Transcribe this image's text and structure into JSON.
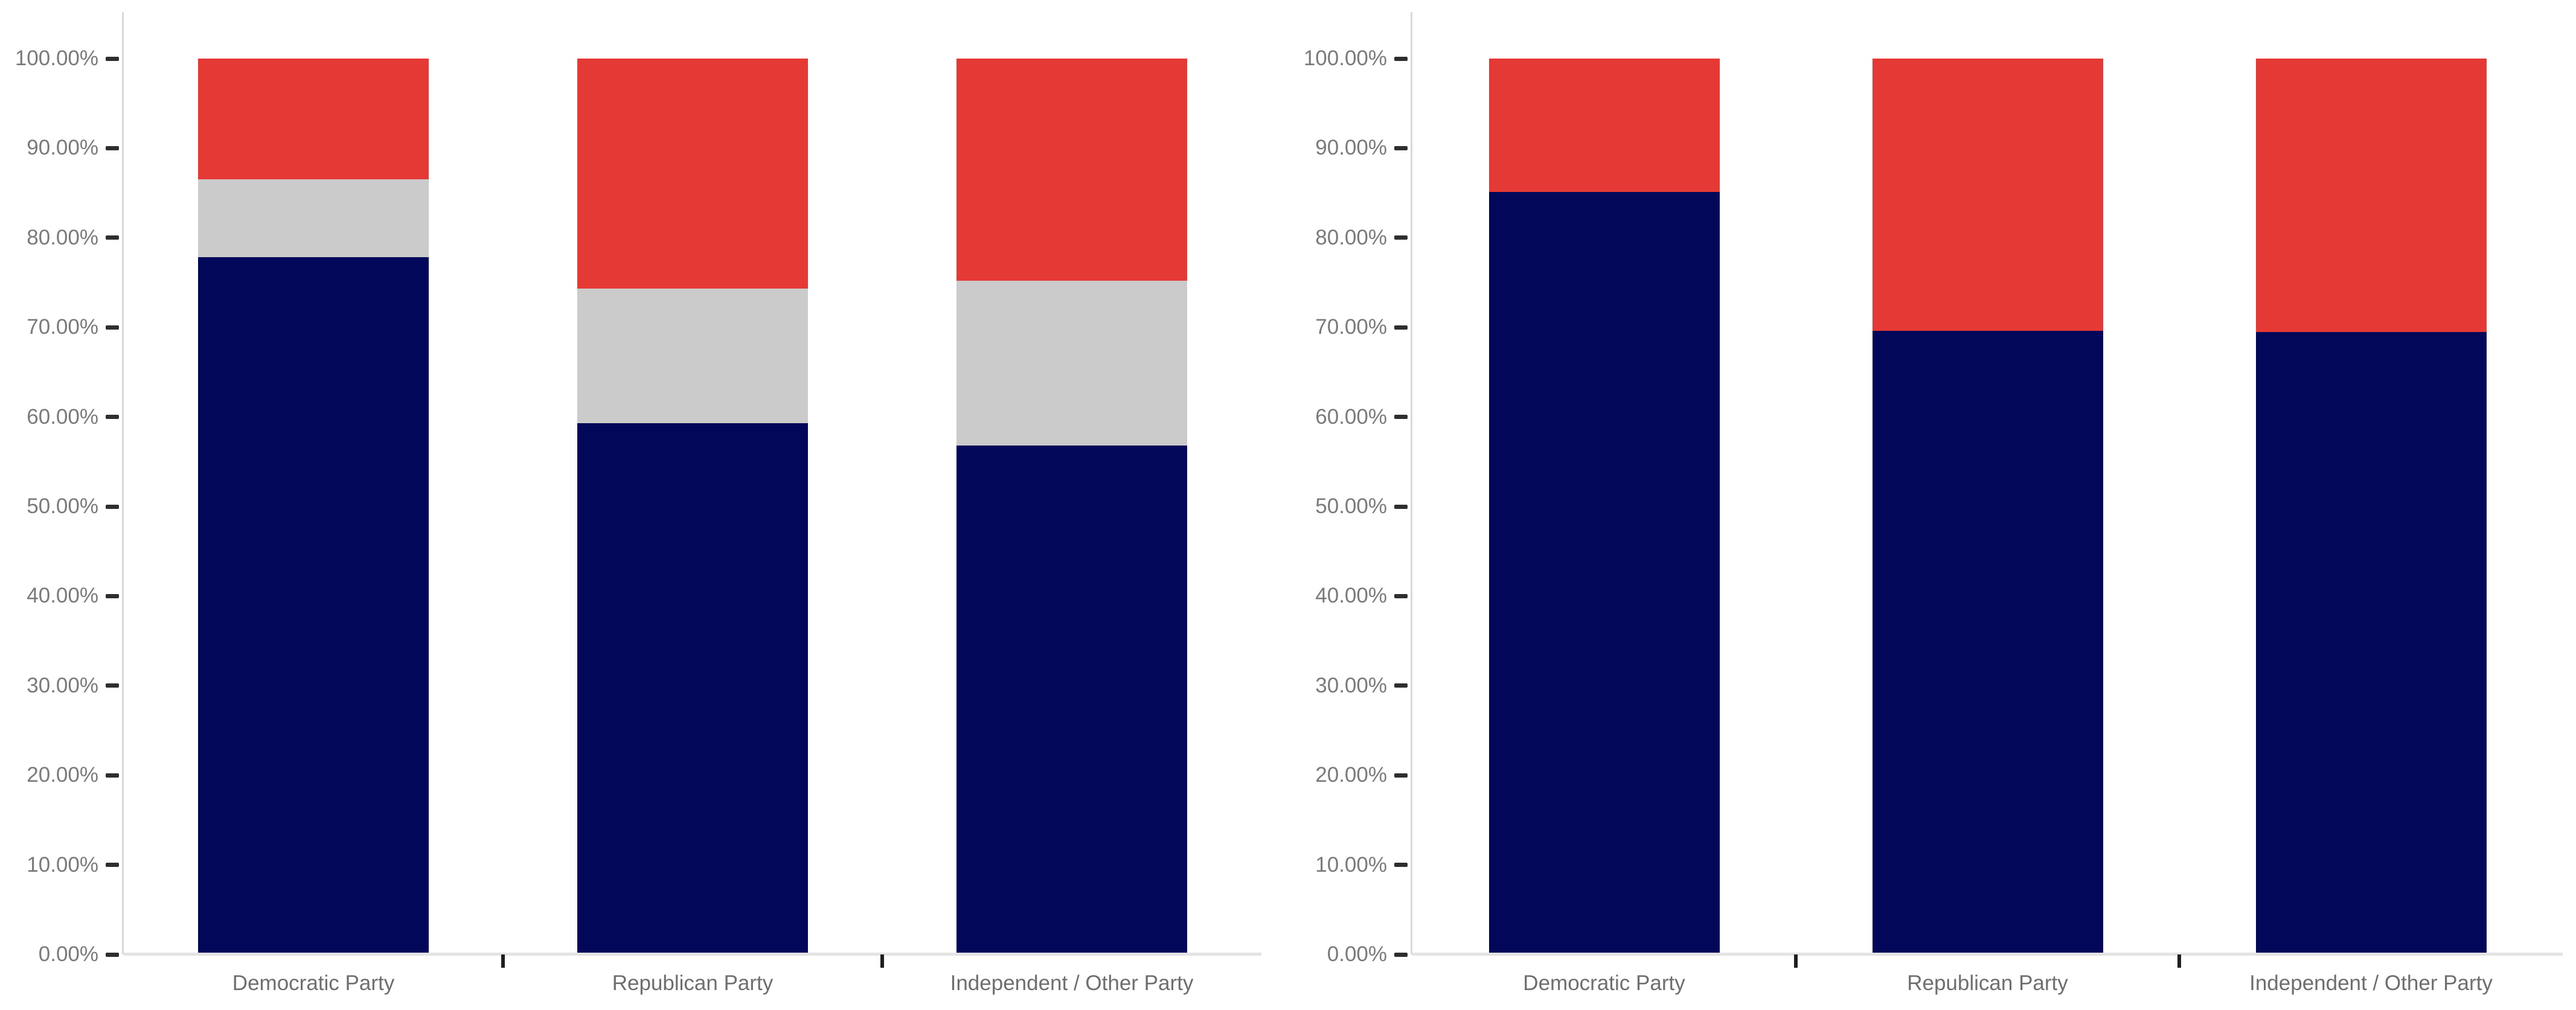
{
  "page": {
    "background_color": "#ffffff"
  },
  "style": {
    "axis_line_color": "#d9d9d9",
    "baseline_color": "#e3e3e3",
    "tick_color": "#2e2e2e",
    "category_tick_color": "#1f1f1f",
    "y_label_color": "#7a7a7a",
    "x_label_color": "#6e6e6e",
    "navy": "#02075a",
    "silver": "#cbcbcb",
    "red": "#e53935"
  },
  "chart_data": [
    {
      "type": "bar",
      "subtype": "stacked-100-percent-column",
      "title": "",
      "xlabel": "",
      "ylabel": "",
      "ylim": [
        0,
        100
      ],
      "grid": false,
      "legend": "none",
      "yticks": [
        "0.00%",
        "10.00%",
        "20.00%",
        "30.00%",
        "40.00%",
        "50.00%",
        "60.00%",
        "70.00%",
        "80.00%",
        "90.00%",
        "100.00%"
      ],
      "categories": [
        "Democratic Party",
        "Republican Party",
        "Independent / Other Party"
      ],
      "series": [
        {
          "name": "navy-segment",
          "color": "#02075a",
          "values": [
            77.8,
            59.3,
            56.8
          ]
        },
        {
          "name": "silver-segment",
          "color": "#cbcbcb",
          "values": [
            8.7,
            15.0,
            18.4
          ]
        },
        {
          "name": "red-segment",
          "color": "#e53935",
          "values": [
            13.5,
            25.7,
            24.8
          ]
        }
      ]
    },
    {
      "type": "bar",
      "subtype": "stacked-100-percent-column",
      "title": "",
      "xlabel": "",
      "ylabel": "",
      "ylim": [
        0,
        100
      ],
      "grid": false,
      "legend": "none",
      "yticks": [
        "0.00%",
        "10.00%",
        "20.00%",
        "30.00%",
        "40.00%",
        "50.00%",
        "60.00%",
        "70.00%",
        "80.00%",
        "90.00%",
        "100.00%"
      ],
      "categories": [
        "Democratic Party",
        "Republican Party",
        "Independent / Other Party"
      ],
      "series": [
        {
          "name": "navy-segment",
          "color": "#02075a",
          "values": [
            85.1,
            69.6,
            69.5
          ]
        },
        {
          "name": "red-segment",
          "color": "#e53935",
          "values": [
            14.9,
            30.4,
            30.5
          ]
        }
      ]
    }
  ]
}
